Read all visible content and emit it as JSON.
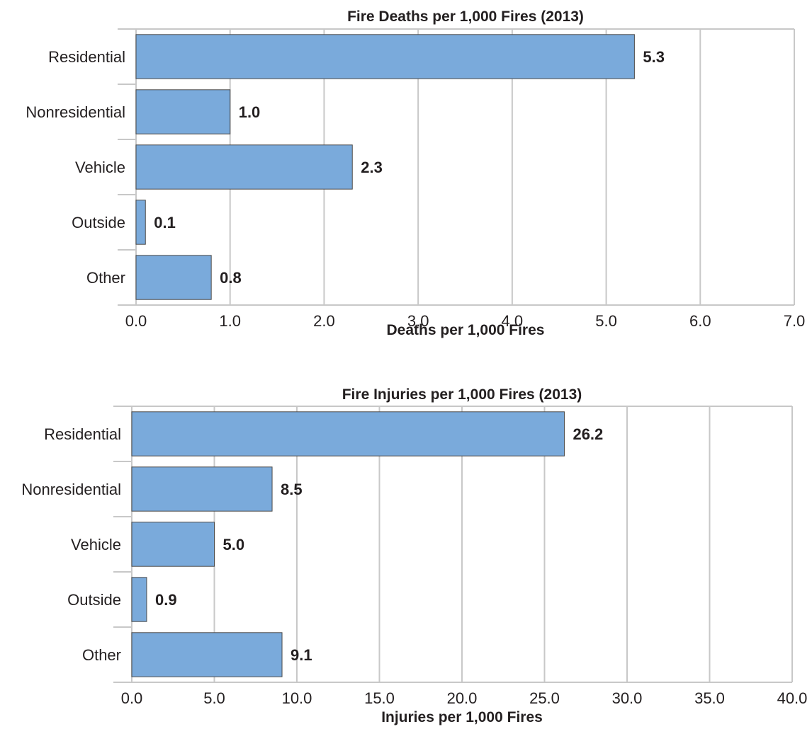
{
  "chart_data": [
    {
      "type": "bar",
      "orientation": "horizontal",
      "title": "Fire Deaths per 1,000 Fires (2013)",
      "xlabel": "Deaths per 1,000 Fires",
      "ylabel": "",
      "categories": [
        "Residential",
        "Nonresidential",
        "Vehicle",
        "Outside",
        "Other"
      ],
      "values": [
        5.3,
        1.0,
        2.3,
        0.1,
        0.8
      ],
      "value_labels": [
        "5.3",
        "1.0",
        "2.3",
        "0.1",
        "0.8"
      ],
      "xlim": [
        0,
        7
      ],
      "ticks": [
        0,
        1,
        2,
        3,
        4,
        5,
        6,
        7
      ],
      "tick_labels": [
        "0.0",
        "1.0",
        "2.0",
        "3.0",
        "4.0",
        "5.0",
        "6.0",
        "7.0"
      ],
      "grid": true,
      "bar_color": "#7aaadb",
      "bar_edge_color": "#4a4a4a",
      "grid_color": "#c8c8c8"
    },
    {
      "type": "bar",
      "orientation": "horizontal",
      "title": "Fire Injuries per 1,000 Fires (2013)",
      "xlabel": "Injuries per 1,000 Fires",
      "ylabel": "",
      "categories": [
        "Residential",
        "Nonresidential",
        "Vehicle",
        "Outside",
        "Other"
      ],
      "values": [
        26.2,
        8.5,
        5.0,
        0.9,
        9.1
      ],
      "value_labels": [
        "26.2",
        "8.5",
        "5.0",
        "0.9",
        "9.1"
      ],
      "xlim": [
        0,
        40
      ],
      "ticks": [
        0,
        5,
        10,
        15,
        20,
        25,
        30,
        35,
        40
      ],
      "tick_labels": [
        "0.0",
        "5.0",
        "10.0",
        "15.0",
        "20.0",
        "25.0",
        "30.0",
        "35.0",
        "40.0"
      ],
      "grid": true,
      "bar_color": "#7aaadb",
      "bar_edge_color": "#4a4a4a",
      "grid_color": "#c8c8c8"
    }
  ]
}
